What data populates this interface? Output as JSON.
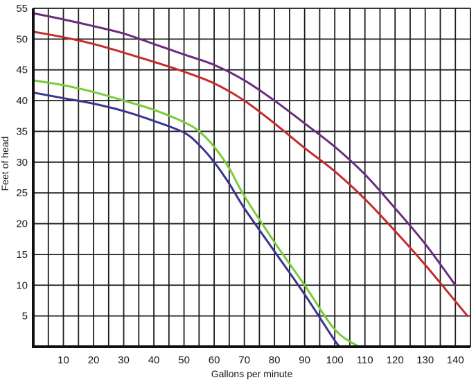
{
  "chart_data": {
    "type": "line",
    "title": "",
    "xlabel": "Gallons per minute",
    "ylabel": "Feet of head",
    "xlim": [
      0,
      145
    ],
    "ylim": [
      0,
      55
    ],
    "x_ticks": [
      10,
      20,
      30,
      40,
      50,
      60,
      70,
      80,
      90,
      100,
      110,
      120,
      130,
      140
    ],
    "y_ticks": [
      5,
      10,
      15,
      20,
      25,
      30,
      35,
      40,
      45,
      50,
      55
    ],
    "grid": true,
    "legend": "none",
    "series": [
      {
        "color": "#6a2d7e",
        "points": [
          [
            0,
            54.2
          ],
          [
            10,
            53.2
          ],
          [
            20,
            52.1
          ],
          [
            30,
            50.9
          ],
          [
            40,
            49.2
          ],
          [
            50,
            47.5
          ],
          [
            60,
            45.8
          ],
          [
            70,
            43.3
          ],
          [
            80,
            40.0
          ],
          [
            90,
            36.3
          ],
          [
            100,
            32.5
          ],
          [
            110,
            28.0
          ],
          [
            120,
            22.5
          ],
          [
            130,
            16.7
          ],
          [
            140,
            10.0
          ]
        ]
      },
      {
        "color": "#c62b2b",
        "points": [
          [
            0,
            51.2
          ],
          [
            10,
            50.3
          ],
          [
            20,
            49.2
          ],
          [
            30,
            47.8
          ],
          [
            40,
            46.3
          ],
          [
            50,
            44.7
          ],
          [
            60,
            42.8
          ],
          [
            70,
            40.0
          ],
          [
            80,
            36.3
          ],
          [
            90,
            32.3
          ],
          [
            100,
            28.5
          ],
          [
            110,
            24.0
          ],
          [
            120,
            18.8
          ],
          [
            130,
            13.3
          ],
          [
            144,
            5.0
          ]
        ]
      },
      {
        "color": "#7acc3a",
        "points": [
          [
            0,
            43.3
          ],
          [
            10,
            42.5
          ],
          [
            20,
            41.4
          ],
          [
            30,
            40.0
          ],
          [
            40,
            38.5
          ],
          [
            50,
            36.5
          ],
          [
            55,
            35.0
          ],
          [
            60,
            32.5
          ],
          [
            65,
            29.0
          ],
          [
            70,
            24.5
          ],
          [
            80,
            17.0
          ],
          [
            90,
            10.0
          ],
          [
            100,
            2.8
          ],
          [
            108,
            0
          ]
        ]
      },
      {
        "color": "#3a3590",
        "points": [
          [
            0,
            41.3
          ],
          [
            10,
            40.4
          ],
          [
            20,
            39.5
          ],
          [
            30,
            38.3
          ],
          [
            40,
            36.7
          ],
          [
            50,
            34.8
          ],
          [
            55,
            32.8
          ],
          [
            60,
            30.0
          ],
          [
            65,
            26.5
          ],
          [
            70,
            22.5
          ],
          [
            80,
            15.5
          ],
          [
            90,
            8.5
          ],
          [
            100,
            1.0
          ],
          [
            102,
            0
          ]
        ]
      }
    ]
  }
}
